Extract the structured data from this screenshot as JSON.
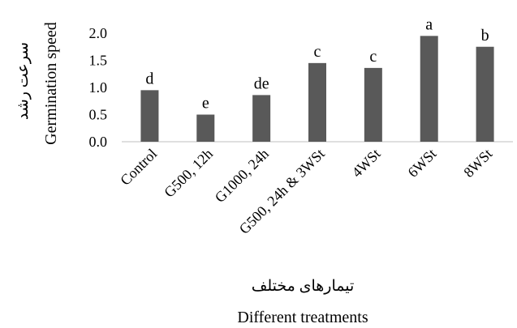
{
  "chart_data": {
    "type": "bar",
    "categories": [
      "Control",
      "G500, 12h",
      "G1000, 24h",
      "G500, 24h & 3WSt",
      "4WSt",
      "6WSt",
      "8WSt"
    ],
    "values": [
      0.95,
      0.5,
      0.86,
      1.45,
      1.36,
      1.95,
      1.75
    ],
    "data_labels": [
      "d",
      "e",
      "de",
      "c",
      "c",
      "a",
      "b"
    ],
    "ylim": [
      0,
      2.0
    ],
    "yticks": [
      "0.0",
      "0.5",
      "1.0",
      "1.5",
      "2.0"
    ],
    "ylabel": "Germination speed",
    "ylabel_fa": "سرعت رشد",
    "xlabel": "Different treatments",
    "xlabel_fa": "تیمارهای مختلف",
    "bar_color": "#595959",
    "grid": false,
    "legend": "none"
  }
}
